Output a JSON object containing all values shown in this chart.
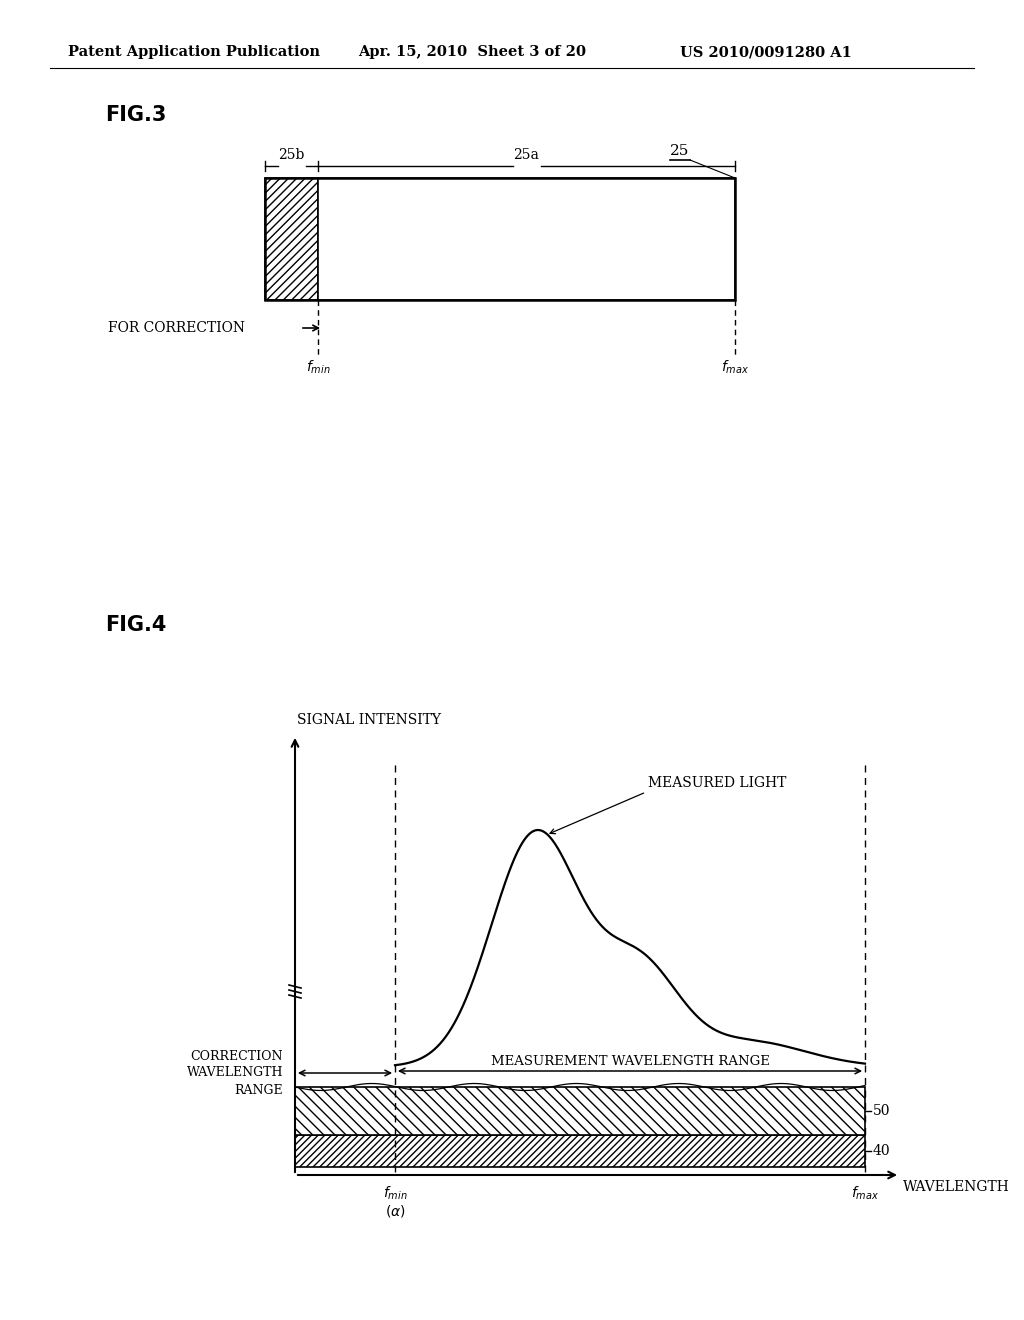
{
  "bg_color": "#ffffff",
  "header_text": "Patent Application Publication",
  "header_date": "Apr. 15, 2010  Sheet 3 of 20",
  "header_patent": "US 2010/0091280 A1",
  "fig3_label": "FIG.3",
  "fig3_label_25": "25",
  "fig3_label_25a": "25a",
  "fig3_label_25b": "25b",
  "fig3_for_correction": "FOR CORRECTION",
  "fig4_label": "FIG.4",
  "fig4_ylabel": "SIGNAL INTENSITY",
  "fig4_xlabel": "WAVELENGTH",
  "fig4_measured_light": "MEASURED LIGHT",
  "fig4_correction_range": "CORRECTION\nWAVELENGTH\nRANGE",
  "fig4_measurement_range": "MEASUREMENT WAVELENGTH RANGE",
  "fig4_label_50": "50",
  "fig4_label_40": "40"
}
